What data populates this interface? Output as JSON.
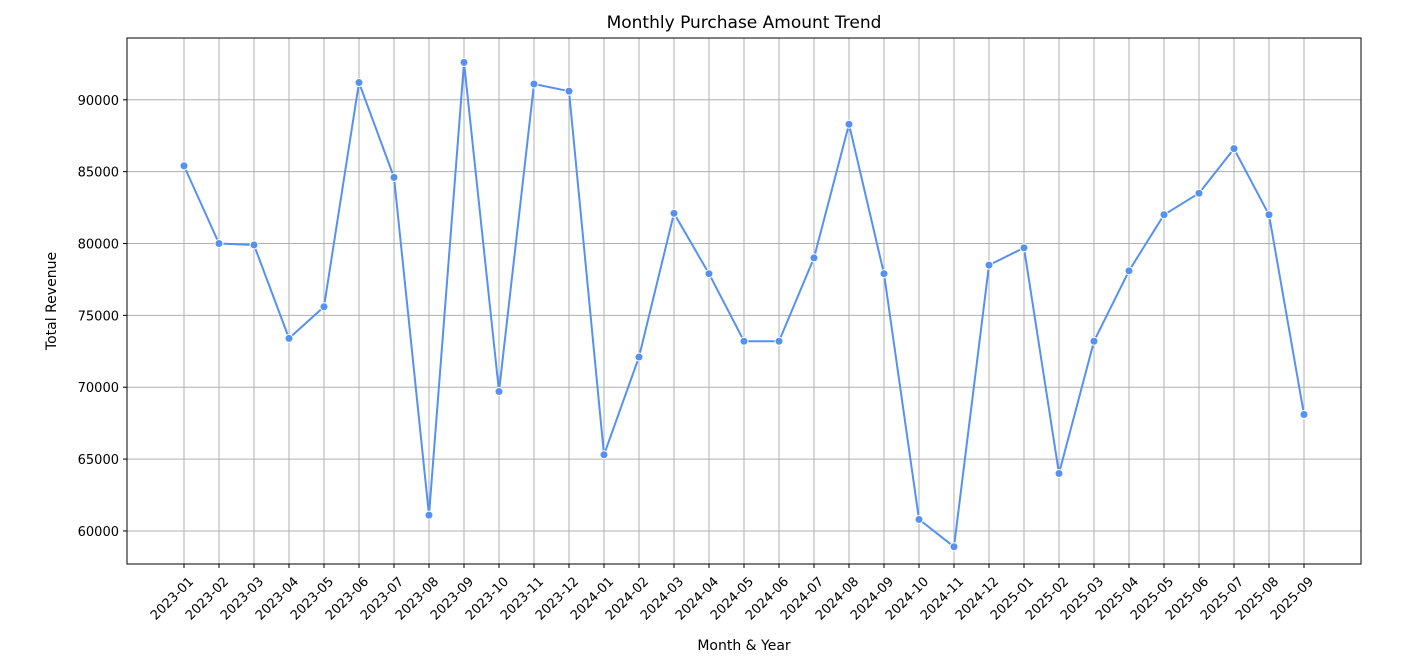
{
  "chart_data": {
    "type": "line",
    "title": "Monthly Purchase Amount Trend",
    "xlabel": "Month & Year",
    "ylabel": "Total Revenue",
    "ylim": [
      57700,
      94300
    ],
    "yticks": [
      60000,
      65000,
      70000,
      75000,
      80000,
      85000,
      90000
    ],
    "grid": true,
    "line_color": "#5591f1",
    "marker_color": "#5591f1",
    "categories": [
      "2023-01",
      "2023-02",
      "2023-03",
      "2023-04",
      "2023-05",
      "2023-06",
      "2023-07",
      "2023-08",
      "2023-09",
      "2023-10",
      "2023-11",
      "2023-12",
      "2024-01",
      "2024-02",
      "2024-03",
      "2024-04",
      "2024-05",
      "2024-06",
      "2024-07",
      "2024-08",
      "2024-09",
      "2024-10",
      "2024-11",
      "2024-12",
      "2025-01",
      "2025-02",
      "2025-03",
      "2025-04",
      "2025-05",
      "2025-06",
      "2025-07",
      "2025-08",
      "2025-09"
    ],
    "values": [
      85400,
      80000,
      79900,
      73400,
      75600,
      91200,
      84600,
      61100,
      92600,
      69700,
      91100,
      90600,
      65300,
      72100,
      82100,
      77900,
      73200,
      73200,
      79000,
      88300,
      77900,
      60800,
      58900,
      78500,
      79700,
      64000,
      73200,
      78100,
      82000,
      83500,
      86600,
      82000,
      68100
    ]
  }
}
